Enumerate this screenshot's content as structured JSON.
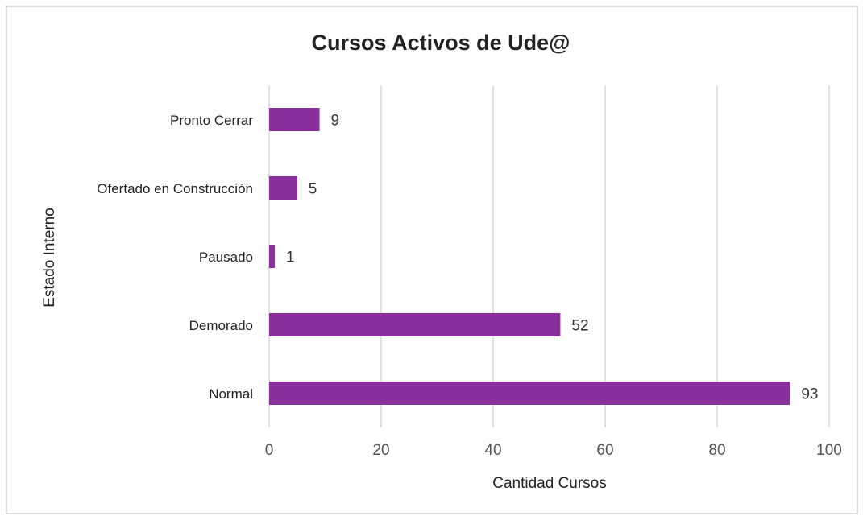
{
  "chart_data": {
    "type": "bar",
    "orientation": "horizontal",
    "title": "Cursos Activos de Ude@",
    "x_label": "Cantidad Cursos",
    "y_label": "Estado Interno",
    "categories": [
      "Pronto Cerrar",
      "Ofertado en Construcción",
      "Pausado",
      "Demorado",
      "Normal"
    ],
    "values": [
      9,
      5,
      1,
      52,
      93
    ],
    "color": "#8b2f9e",
    "xlim": [
      0,
      100
    ],
    "xticks": [
      0,
      20,
      40,
      60,
      80,
      100
    ],
    "grid": true
  }
}
